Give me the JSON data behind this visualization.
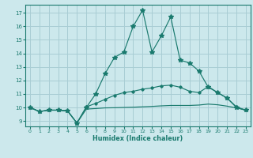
{
  "xlabel": "Humidex (Indice chaleur)",
  "bg_color": "#cce8ec",
  "grid_color": "#a8cdd4",
  "line_color": "#1a7a6e",
  "xlim": [
    -0.5,
    23.5
  ],
  "ylim": [
    8.6,
    17.6
  ],
  "xticks": [
    0,
    1,
    2,
    3,
    4,
    5,
    6,
    7,
    8,
    9,
    10,
    11,
    12,
    13,
    14,
    15,
    16,
    17,
    18,
    19,
    20,
    21,
    22,
    23
  ],
  "yticks": [
    9,
    10,
    11,
    12,
    13,
    14,
    15,
    16,
    17
  ],
  "line1_x": [
    0,
    1,
    2,
    3,
    4,
    5,
    6,
    7,
    8,
    9,
    10,
    11,
    12,
    13,
    14,
    15,
    16,
    17,
    18,
    19,
    20,
    21,
    22,
    23
  ],
  "line1_y": [
    10.0,
    9.7,
    9.8,
    9.8,
    9.75,
    8.85,
    10.0,
    11.0,
    12.5,
    13.7,
    14.1,
    16.0,
    17.2,
    14.1,
    15.3,
    16.7,
    13.5,
    13.3,
    12.7,
    11.5,
    11.1,
    10.7,
    10.0,
    9.8
  ],
  "line2_x": [
    0,
    1,
    2,
    3,
    4,
    5,
    6,
    7,
    8,
    9,
    10,
    11,
    12,
    13,
    14,
    15,
    16,
    17,
    18,
    19,
    20,
    21,
    22,
    23
  ],
  "line2_y": [
    10.0,
    9.7,
    9.8,
    9.8,
    9.75,
    8.85,
    10.05,
    10.3,
    10.6,
    10.9,
    11.1,
    11.2,
    11.35,
    11.45,
    11.6,
    11.65,
    11.5,
    11.2,
    11.1,
    11.55,
    11.1,
    10.7,
    10.05,
    9.8
  ],
  "line3_x": [
    0,
    1,
    2,
    3,
    4,
    5,
    6,
    7,
    8,
    9,
    10,
    11,
    12,
    13,
    14,
    15,
    16,
    17,
    18,
    19,
    20,
    21,
    22,
    23
  ],
  "line3_y": [
    10.0,
    9.7,
    9.8,
    9.8,
    9.75,
    8.85,
    9.88,
    9.92,
    9.97,
    9.98,
    10.0,
    10.02,
    10.05,
    10.08,
    10.12,
    10.15,
    10.15,
    10.15,
    10.18,
    10.25,
    10.2,
    10.1,
    9.97,
    9.8
  ]
}
